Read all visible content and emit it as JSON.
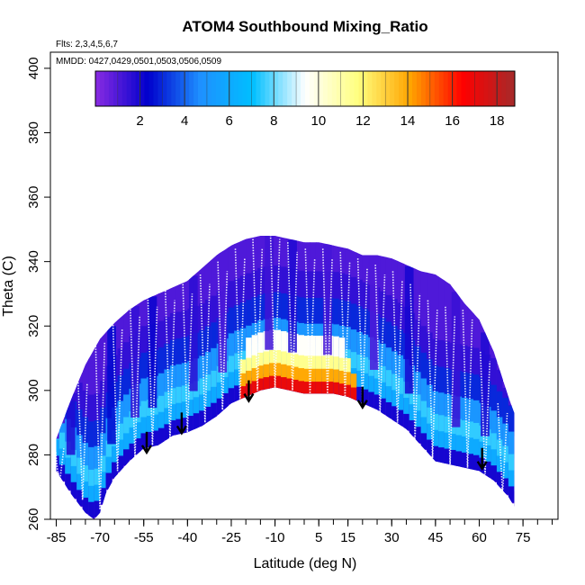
{
  "chart_data": {
    "type": "heatmap",
    "title": "ATOM4 Southbound Mixing_Ratio",
    "flights_note": "Flts: 2,3,4,5,6,7",
    "dates_note": "MMDD: 0427,0429,0501,0503,0506,0509",
    "xlabel": "Latitude (deg N)",
    "ylabel": "Theta (C)",
    "xlim": [
      -87,
      87
    ],
    "ylim": [
      260,
      405
    ],
    "x_ticks": [
      -85,
      -70,
      -55,
      -40,
      -25,
      -10,
      5,
      15,
      30,
      45,
      60,
      75
    ],
    "x_minor_step": 5,
    "y_ticks": [
      260,
      280,
      300,
      320,
      340,
      360,
      380,
      400
    ],
    "colorbar": {
      "range": [
        0,
        18.8
      ],
      "ticks": [
        2,
        4,
        6,
        8,
        10,
        12,
        14,
        16,
        18
      ],
      "colors": [
        "#8a2be2",
        "#0000cd",
        "#1e90ff",
        "#00bfff",
        "#ffffff",
        "#ffff80",
        "#ffa500",
        "#ff0000",
        "#a52a2a"
      ]
    },
    "top_boundary": [
      [
        -85,
        285
      ],
      [
        -80,
        297
      ],
      [
        -75,
        308
      ],
      [
        -70,
        316
      ],
      [
        -65,
        321
      ],
      [
        -60,
        325
      ],
      [
        -55,
        328
      ],
      [
        -50,
        330
      ],
      [
        -45,
        332
      ],
      [
        -40,
        334
      ],
      [
        -35,
        338
      ],
      [
        -30,
        342
      ],
      [
        -25,
        345
      ],
      [
        -20,
        347
      ],
      [
        -15,
        348
      ],
      [
        -10,
        348
      ],
      [
        -5,
        347
      ],
      [
        0,
        346
      ],
      [
        5,
        346
      ],
      [
        10,
        345
      ],
      [
        15,
        344
      ],
      [
        20,
        342
      ],
      [
        25,
        342
      ],
      [
        30,
        341
      ],
      [
        35,
        339
      ],
      [
        40,
        337
      ],
      [
        45,
        336
      ],
      [
        50,
        333
      ],
      [
        55,
        327
      ],
      [
        60,
        322
      ],
      [
        65,
        312
      ],
      [
        70,
        298
      ],
      [
        72,
        293
      ]
    ],
    "bottom_boundary": [
      [
        -85,
        275
      ],
      [
        -80,
        268
      ],
      [
        -75,
        262
      ],
      [
        -72,
        260
      ],
      [
        -70,
        262
      ],
      [
        -68,
        268
      ],
      [
        -65,
        273
      ],
      [
        -60,
        278
      ],
      [
        -55,
        282
      ],
      [
        -50,
        283
      ],
      [
        -45,
        286
      ],
      [
        -40,
        287
      ],
      [
        -35,
        289
      ],
      [
        -30,
        292
      ],
      [
        -25,
        296
      ],
      [
        -20,
        298
      ],
      [
        -15,
        300
      ],
      [
        -10,
        301
      ],
      [
        -5,
        300
      ],
      [
        0,
        299
      ],
      [
        5,
        299
      ],
      [
        10,
        299
      ],
      [
        15,
        298
      ],
      [
        20,
        296
      ],
      [
        25,
        294
      ],
      [
        30,
        291
      ],
      [
        35,
        288
      ],
      [
        40,
        283
      ],
      [
        45,
        278
      ],
      [
        50,
        277
      ],
      [
        55,
        276
      ],
      [
        60,
        275
      ],
      [
        65,
        272
      ],
      [
        70,
        267
      ],
      [
        72,
        264
      ]
    ],
    "bands": [
      {
        "offset": 0,
        "value": 2.0
      },
      {
        "offset": 5,
        "value": 6.0
      },
      {
        "offset": 10,
        "value": 7.5
      },
      {
        "offset": 15,
        "value": 5.0
      },
      {
        "offset": 22,
        "value": 3.0
      },
      {
        "offset": 30,
        "value": 1.5
      }
    ],
    "moist_core": [
      {
        "lat_min": -22,
        "lat_max": 18,
        "offset": 0,
        "height": 4,
        "value": 17.0
      },
      {
        "lat_min": -22,
        "lat_max": 18,
        "offset": 4,
        "height": 4,
        "value": 14.0
      },
      {
        "lat_min": -22,
        "lat_max": 16,
        "offset": 8,
        "height": 4,
        "value": 11.5
      },
      {
        "lat_min": -20,
        "lat_max": 14,
        "offset": 12,
        "height": 6,
        "value": 9.5
      }
    ],
    "columns": [
      {
        "lat": -80,
        "value": 1.8
      },
      {
        "lat": -66,
        "value": 2.5
      },
      {
        "lat": -58,
        "value": 1.5
      },
      {
        "lat": -52,
        "value": 2.2
      },
      {
        "lat": -38,
        "value": 1.6
      },
      {
        "lat": -28,
        "value": 1.0
      },
      {
        "lat": -12,
        "value": 1.3
      },
      {
        "lat": -4,
        "value": 1.8
      },
      {
        "lat": 8,
        "value": 1.2
      },
      {
        "lat": 24,
        "value": 1.0
      },
      {
        "lat": 36,
        "value": 2.0
      },
      {
        "lat": 52,
        "value": 1.4
      },
      {
        "lat": 62,
        "value": 1.8
      }
    ],
    "profiles": [
      {
        "lat": -84,
        "top": 285,
        "bottom": 270
      },
      {
        "lat": -76,
        "top": 305,
        "bottom": 266
      },
      {
        "lat": -70,
        "top": 318,
        "bottom": 263
      },
      {
        "lat": -64,
        "top": 322,
        "bottom": 275
      },
      {
        "lat": -58,
        "top": 326,
        "bottom": 279
      },
      {
        "lat": -52,
        "top": 329,
        "bottom": 283
      },
      {
        "lat": -46,
        "top": 331,
        "bottom": 285
      },
      {
        "lat": -40,
        "top": 333,
        "bottom": 287
      },
      {
        "lat": -34,
        "top": 336,
        "bottom": 290
      },
      {
        "lat": -28,
        "top": 340,
        "bottom": 294
      },
      {
        "lat": -22,
        "top": 344,
        "bottom": 297
      },
      {
        "lat": -16,
        "top": 347,
        "bottom": 300
      },
      {
        "lat": -10,
        "top": 350,
        "bottom": 301
      },
      {
        "lat": -4,
        "top": 346,
        "bottom": 300
      },
      {
        "lat": 2,
        "top": 344,
        "bottom": 299
      },
      {
        "lat": 8,
        "top": 344,
        "bottom": 299
      },
      {
        "lat": 14,
        "top": 343,
        "bottom": 298
      },
      {
        "lat": 20,
        "top": 341,
        "bottom": 296
      },
      {
        "lat": 26,
        "top": 339,
        "bottom": 293
      },
      {
        "lat": 32,
        "top": 337,
        "bottom": 290
      },
      {
        "lat": 38,
        "top": 333,
        "bottom": 285
      },
      {
        "lat": 44,
        "top": 328,
        "bottom": 279
      },
      {
        "lat": 50,
        "top": 326,
        "bottom": 277
      },
      {
        "lat": 56,
        "top": 325,
        "bottom": 276
      },
      {
        "lat": 62,
        "top": 312,
        "bottom": 274
      },
      {
        "lat": 68,
        "top": 296,
        "bottom": 268
      }
    ],
    "arrows": [
      {
        "lat": -54,
        "theta": 281
      },
      {
        "lat": -42,
        "theta": 287
      },
      {
        "lat": -19,
        "theta": 297
      },
      {
        "lat": 20,
        "theta": 295
      },
      {
        "lat": 61,
        "theta": 276
      }
    ]
  }
}
